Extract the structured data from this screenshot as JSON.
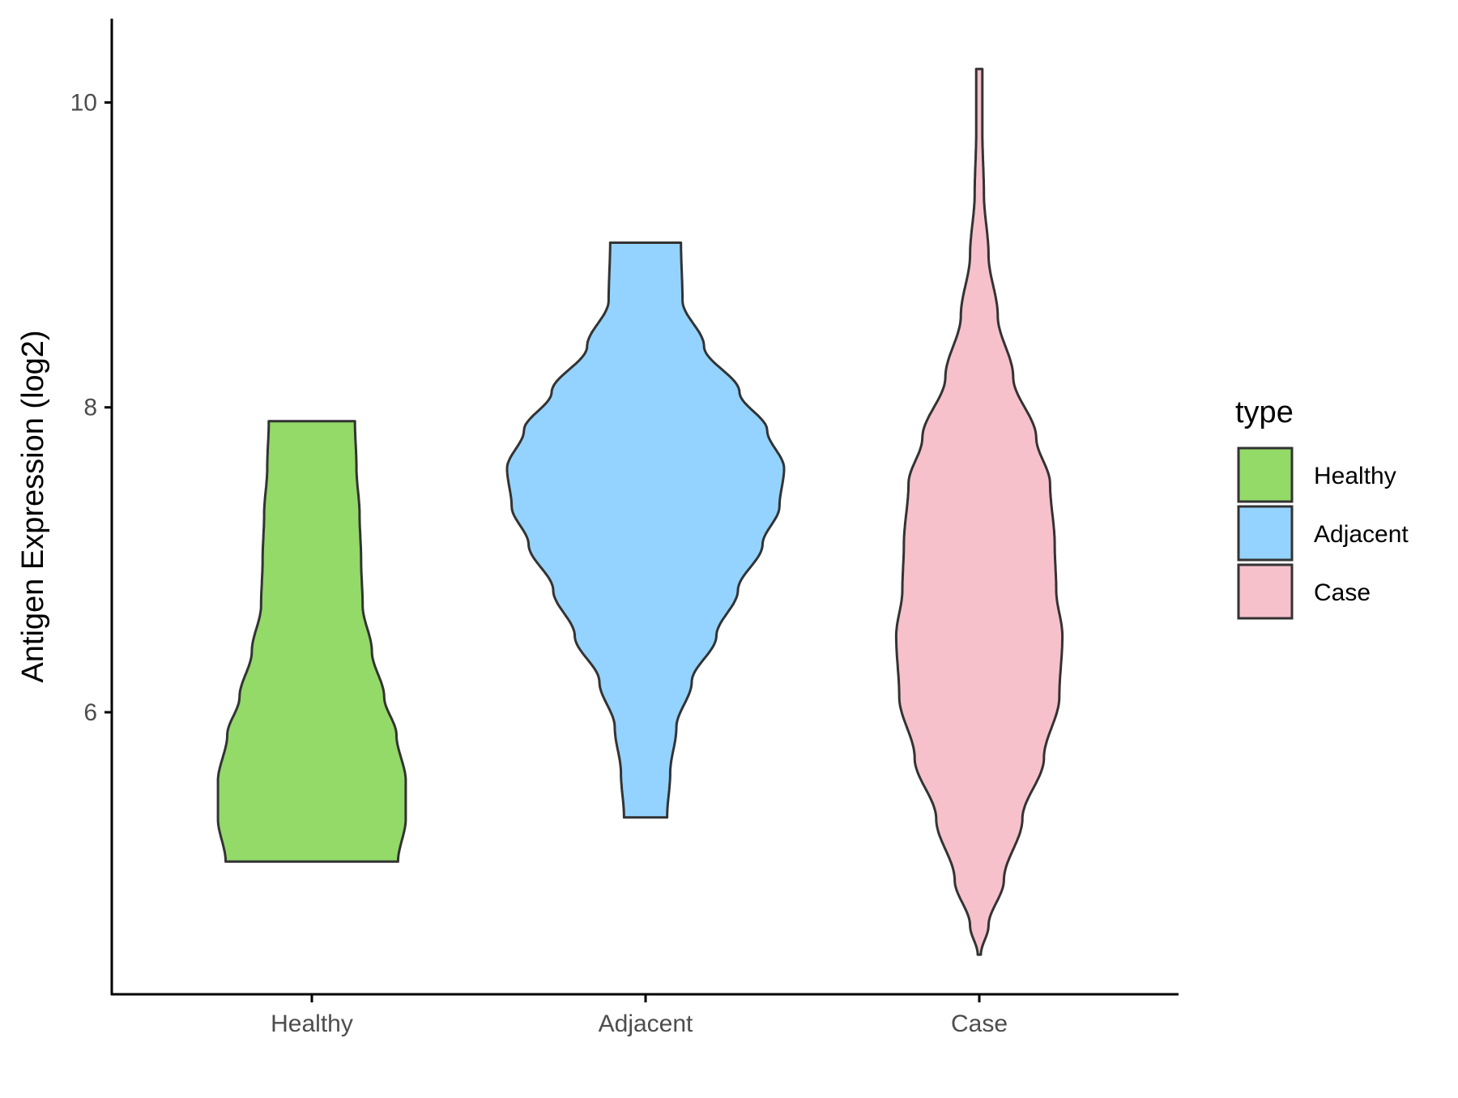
{
  "chart_data": {
    "type": "violin",
    "title": "",
    "xlabel": "",
    "ylabel": "Antigen Expression (log2)",
    "ylim": [
      4.15,
      10.55
    ],
    "yticks": [
      6,
      8,
      10
    ],
    "categories": [
      "Healthy",
      "Adjacent",
      "Case"
    ],
    "grid": false,
    "legend": {
      "title": "type",
      "position": "right",
      "items": [
        "Healthy",
        "Adjacent",
        "Case"
      ]
    },
    "colors": {
      "Healthy": "#93DA69",
      "Adjacent": "#94D3FF",
      "Case": "#F7C1CC",
      "outline": "#333333",
      "axis": "#000000"
    },
    "series": [
      {
        "category": "Healthy",
        "min": 5.02,
        "max": 7.91,
        "density": [
          [
            5.02,
            0.56
          ],
          [
            5.3,
            0.61
          ],
          [
            5.55,
            0.61
          ],
          [
            5.85,
            0.55
          ],
          [
            6.1,
            0.47
          ],
          [
            6.4,
            0.39
          ],
          [
            6.7,
            0.33
          ],
          [
            7.0,
            0.32
          ],
          [
            7.3,
            0.31
          ],
          [
            7.6,
            0.29
          ],
          [
            7.91,
            0.28
          ]
        ]
      },
      {
        "category": "Adjacent",
        "min": 5.31,
        "max": 9.08,
        "density": [
          [
            5.31,
            0.14
          ],
          [
            5.6,
            0.16
          ],
          [
            5.9,
            0.2
          ],
          [
            6.2,
            0.3
          ],
          [
            6.5,
            0.46
          ],
          [
            6.8,
            0.6
          ],
          [
            7.1,
            0.76
          ],
          [
            7.35,
            0.87
          ],
          [
            7.6,
            0.9
          ],
          [
            7.85,
            0.79
          ],
          [
            8.1,
            0.61
          ],
          [
            8.4,
            0.38
          ],
          [
            8.7,
            0.24
          ],
          [
            9.08,
            0.23
          ]
        ]
      },
      {
        "category": "Case",
        "min": 4.41,
        "max": 10.22,
        "density": [
          [
            4.41,
            0.01
          ],
          [
            4.6,
            0.06
          ],
          [
            4.9,
            0.16
          ],
          [
            5.3,
            0.28
          ],
          [
            5.7,
            0.42
          ],
          [
            6.1,
            0.52
          ],
          [
            6.5,
            0.54
          ],
          [
            6.8,
            0.5
          ],
          [
            7.1,
            0.49
          ],
          [
            7.5,
            0.46
          ],
          [
            7.8,
            0.37
          ],
          [
            8.2,
            0.22
          ],
          [
            8.6,
            0.12
          ],
          [
            9.0,
            0.06
          ],
          [
            9.4,
            0.03
          ],
          [
            9.8,
            0.02
          ],
          [
            10.22,
            0.02
          ]
        ]
      }
    ]
  }
}
